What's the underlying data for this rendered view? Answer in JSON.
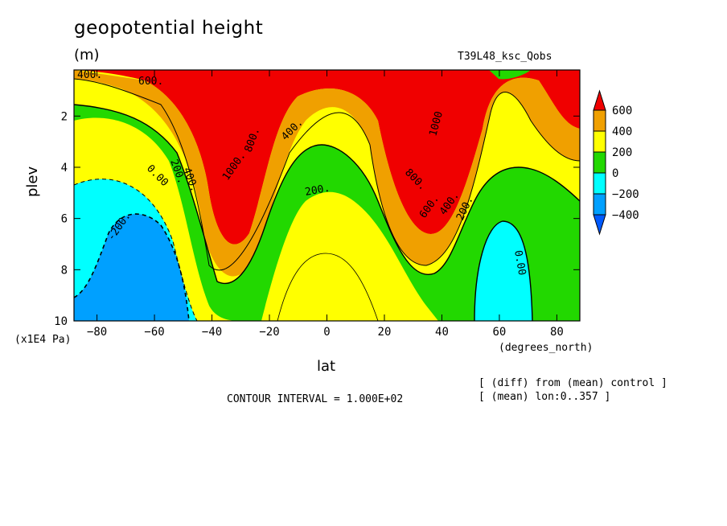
{
  "chart_data": {
    "type": "contour",
    "title": "geopotential height",
    "units": "(m)",
    "run_label": "T39L48_ksc_Qobs",
    "xlabel": "lat",
    "xunits": "(degrees_north)",
    "ylabel": "plev",
    "yunits": "(x1E4 Pa)",
    "xlim": [
      -88,
      88
    ],
    "ylim": [
      0.2,
      10
    ],
    "y_inverted": true,
    "x_ticks": [
      -80,
      -60,
      -40,
      -20,
      0,
      20,
      40,
      60,
      80
    ],
    "y_ticks": [
      2,
      4,
      6,
      8,
      10
    ],
    "contour_interval_text": "CONTOUR INTERVAL = 1.000E+02",
    "notes": [
      "[ (diff) from (mean) control ]",
      "[ (mean) lon:0..357 ]"
    ],
    "colorbar": {
      "levels": [
        600,
        400,
        200,
        0,
        -200,
        -400
      ],
      "colors": [
        "#f00000",
        "#f0a000",
        "#ffff00",
        "#22d800",
        "#00ffff",
        "#00a0ff",
        "#005aff"
      ]
    },
    "contour_labels": [
      "400.",
      "600.",
      "1000.",
      "800.",
      "400.",
      "400.",
      "200.",
      "0.00",
      "-200.",
      "200.",
      "1000",
      "800.",
      "600.",
      "400.",
      "200.",
      "0.00"
    ],
    "regions": [
      {
        "description": "max near",
        "lat": -35,
        "plev": 2.5,
        "value": 1000
      },
      {
        "description": "max near",
        "lat": 35,
        "plev": 2.5,
        "value": 1000
      },
      {
        "description": "min near",
        "lat": -65,
        "plev": 9,
        "value": -300
      },
      {
        "description": "min near",
        "lat": 57,
        "plev": 9,
        "value": -100
      },
      {
        "description": "ridge",
        "lat": 0,
        "plev": 10,
        "value": 100
      }
    ]
  }
}
